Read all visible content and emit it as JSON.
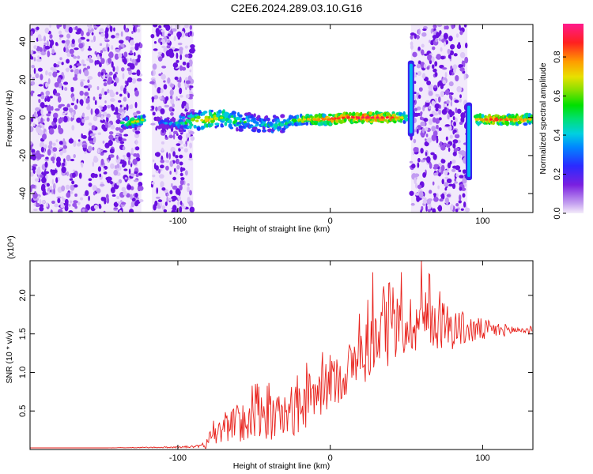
{
  "chart_data": [
    {
      "type": "heatmap",
      "title": "C2E6.2024.289.03.10.G16",
      "xlabel": "Height of straight line (km)",
      "ylabel": "Frequency (Hz)",
      "xlim": [
        -197,
        133
      ],
      "ylim": [
        -50,
        49
      ],
      "xticks": [
        -100,
        0,
        100
      ],
      "yticks": [
        -40,
        -20,
        0,
        20,
        40
      ],
      "colorbar": {
        "label": "Normalized spectral amplitude",
        "range": [
          0,
          0.97
        ],
        "ticks": [
          0.0,
          0.2,
          0.4,
          0.6,
          0.8
        ]
      },
      "noise_regions_km": [
        [
          -197,
          -124
        ],
        [
          -117,
          -90
        ],
        [
          53,
          90
        ]
      ],
      "ridge": {
        "x": [
          -136,
          -126,
          -122,
          -112,
          -100,
          -90,
          -80,
          -70,
          -60,
          -50,
          -40,
          -30,
          -20,
          -10,
          0,
          10,
          20,
          30,
          40,
          50,
          96,
          105,
          115,
          125,
          133
        ],
        "freq": [
          -3,
          -2,
          -1,
          -3,
          -3,
          -2,
          -1,
          0,
          -2,
          -3,
          -4,
          -3,
          -1,
          -1,
          -1,
          0,
          0,
          0,
          0,
          0,
          -1,
          -1,
          -1,
          -1,
          -1
        ],
        "amplitude": [
          0.5,
          0.7,
          0.6,
          0.3,
          0.4,
          0.6,
          0.7,
          0.6,
          0.5,
          0.45,
          0.45,
          0.5,
          0.65,
          0.75,
          0.8,
          0.85,
          0.9,
          0.9,
          0.85,
          0.6,
          0.7,
          0.85,
          0.8,
          0.75,
          0.7
        ]
      },
      "spikes": [
        {
          "x": 53,
          "freq_range": [
            -10,
            30
          ]
        },
        {
          "x": 91,
          "freq_range": [
            -33,
            8
          ]
        }
      ]
    },
    {
      "type": "line",
      "xlabel": "Height of straight line (km)",
      "ylabel": "SNR (10 * v/v)",
      "scale_label": "(x10⁴)",
      "xlim": [
        -197,
        133
      ],
      "ylim": [
        0,
        2.45
      ],
      "xticks": [
        -100,
        0,
        100
      ],
      "yticks": [
        0.5,
        1.0,
        1.5,
        2.0
      ],
      "series": [
        {
          "name": "SNR",
          "color": "#e8211b",
          "x": [
            -197,
            -150,
            -100,
            -85,
            -80,
            -75,
            -70,
            -60,
            -50,
            -40,
            -30,
            -20,
            -10,
            0,
            10,
            20,
            30,
            40,
            50,
            60,
            70,
            80,
            90,
            100,
            110,
            120,
            133
          ],
          "y": [
            0.02,
            0.02,
            0.03,
            0.04,
            0.08,
            0.18,
            0.3,
            0.35,
            0.4,
            0.4,
            0.45,
            0.55,
            0.7,
            0.85,
            1.0,
            1.2,
            1.4,
            1.55,
            1.6,
            1.7,
            1.65,
            1.6,
            1.55,
            1.55,
            1.55,
            1.55,
            1.55
          ],
          "noise_amplitude": [
            0,
            0,
            0.01,
            0.02,
            0.08,
            0.15,
            0.2,
            0.25,
            0.3,
            0.3,
            0.3,
            0.35,
            0.35,
            0.3,
            0.35,
            0.4,
            0.45,
            0.45,
            0.4,
            0.4,
            0.35,
            0.3,
            0.2,
            0.15,
            0.1,
            0.06,
            0.05
          ],
          "peaks": [
            {
              "x": 28,
              "y": 2.3
            },
            {
              "x": 60,
              "y": 2.45
            }
          ]
        }
      ]
    }
  ]
}
